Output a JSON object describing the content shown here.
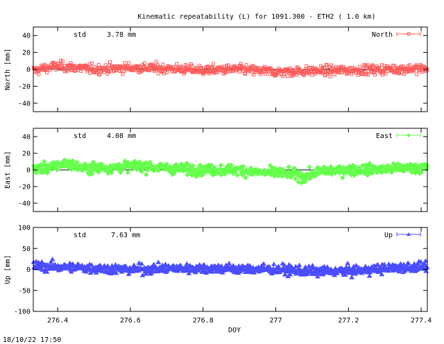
{
  "title": "Kinematic repeatability (L) for 1091.300 - ETH2  (  1.0 km)",
  "timestamp": "18/10/22 17:50",
  "xlabel": "DOY",
  "chart_data": [
    {
      "type": "scatter",
      "name": "North",
      "ylabel": "North [mm]",
      "std_label": "std",
      "std_value": "3.78 mm",
      "color": "#ff5a5a",
      "marker": "square",
      "xlim": [
        276.333,
        277.417
      ],
      "ylim": [
        -50,
        50
      ],
      "yticks": [
        -40,
        -20,
        0,
        20,
        40
      ],
      "xticks": [
        276.4,
        276.6,
        276.8,
        277,
        277.2,
        277.4
      ],
      "grid": false,
      "legend": "top-right",
      "sample_every_day": 0.0014,
      "trend": {
        "x": [
          276.333,
          276.36,
          276.4,
          276.45,
          276.5,
          276.6,
          276.7,
          276.8,
          276.9,
          277.0,
          277.1,
          277.2,
          277.3,
          277.417
        ],
        "y": [
          -2,
          1,
          4,
          2,
          0,
          2,
          1,
          -1,
          0,
          -3,
          -2,
          -1,
          0,
          1
        ]
      }
    },
    {
      "type": "scatter",
      "name": "East",
      "ylabel": "East [mm]",
      "std_label": "std",
      "std_value": "4.08 mm",
      "color": "#66ff4d",
      "marker": "diamond",
      "xlim": [
        276.333,
        277.417
      ],
      "ylim": [
        -50,
        50
      ],
      "yticks": [
        -40,
        -20,
        0,
        20,
        40
      ],
      "xticks": [
        276.4,
        276.6,
        276.8,
        277,
        277.2,
        277.4
      ],
      "grid": false,
      "legend": "top-right",
      "sample_every_day": 0.0014,
      "trend": {
        "x": [
          276.333,
          276.38,
          276.42,
          276.47,
          276.55,
          276.62,
          276.7,
          276.8,
          276.9,
          276.95,
          277.03,
          277.08,
          277.13,
          277.2,
          277.3,
          277.417
        ],
        "y": [
          1,
          3,
          8,
          2,
          3,
          5,
          2,
          0,
          0,
          -3,
          -4,
          -8,
          -1,
          0,
          1,
          3
        ]
      }
    },
    {
      "type": "scatter",
      "name": "Up",
      "ylabel": "Up [mm]",
      "std_label": "std",
      "std_value": "7.63 mm",
      "color": "#4b4dff",
      "marker": "triangle",
      "xlim": [
        276.333,
        277.417
      ],
      "ylim": [
        -100,
        100
      ],
      "yticks": [
        -100,
        -50,
        0,
        50,
        100
      ],
      "xticks": [
        276.4,
        276.6,
        276.8,
        277,
        277.2,
        277.4
      ],
      "xticklabels": [
        "276.4",
        "276.6",
        "276.8",
        "277",
        "277.2",
        "277.4"
      ],
      "grid": false,
      "legend": "top-right",
      "sample_every_day": 0.0014,
      "trend": {
        "x": [
          276.333,
          276.4,
          276.5,
          276.6,
          276.7,
          276.8,
          276.9,
          277.0,
          277.1,
          277.2,
          277.3,
          277.417
        ],
        "y": [
          8,
          6,
          3,
          0,
          2,
          3,
          1,
          0,
          -5,
          -4,
          2,
          8
        ]
      }
    }
  ]
}
